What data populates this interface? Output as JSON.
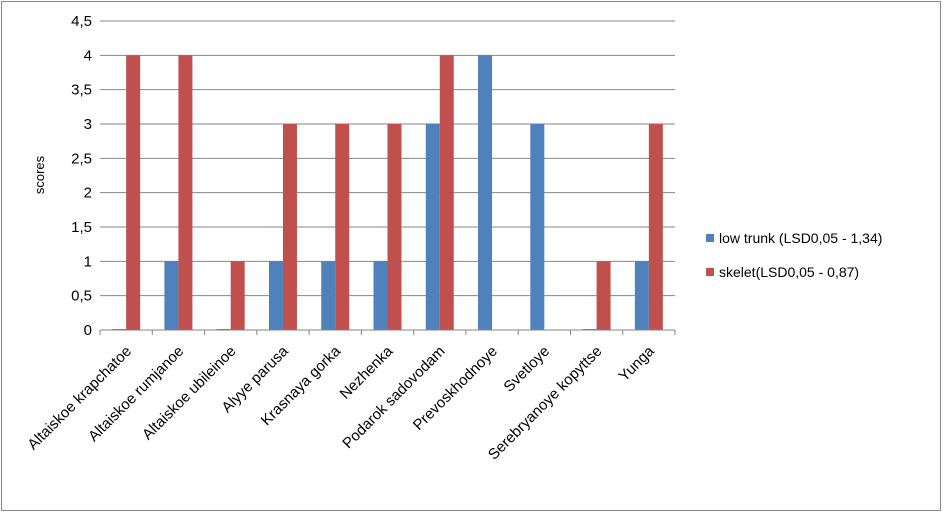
{
  "chart_data": {
    "type": "bar",
    "title": "",
    "xlabel": "",
    "ylabel": "scores",
    "ylim": [
      0,
      4.5
    ],
    "yticks": [
      "0",
      "0,5",
      "1",
      "1,5",
      "2",
      "2,5",
      "3",
      "3,5",
      "4",
      "4,5"
    ],
    "grid": true,
    "legend_position": "right",
    "categories": [
      "Altaiskoe krapchatoe",
      "Altaiskoe rumjanoe",
      "Altaiskoe ubileinoe",
      "Alyye parusa",
      "Krasnaya gorka",
      "Nezhenka",
      "Podarok sadovodam",
      "Prevoskhodnoye",
      "Svetloye",
      "Serebryanoye kopyttse",
      "Yunga"
    ],
    "series": [
      {
        "name": "low trunk  (LSD0,05 - 1,34)",
        "color": "#4f81bd",
        "values": [
          0,
          1,
          0,
          1,
          1,
          1,
          3,
          4,
          3,
          0,
          1
        ]
      },
      {
        "name": "skelet(LSD0,05 - 0,87)",
        "color": "#c0504d",
        "values": [
          4,
          4,
          1,
          3,
          3,
          3,
          4,
          null,
          null,
          1,
          3
        ]
      }
    ]
  }
}
